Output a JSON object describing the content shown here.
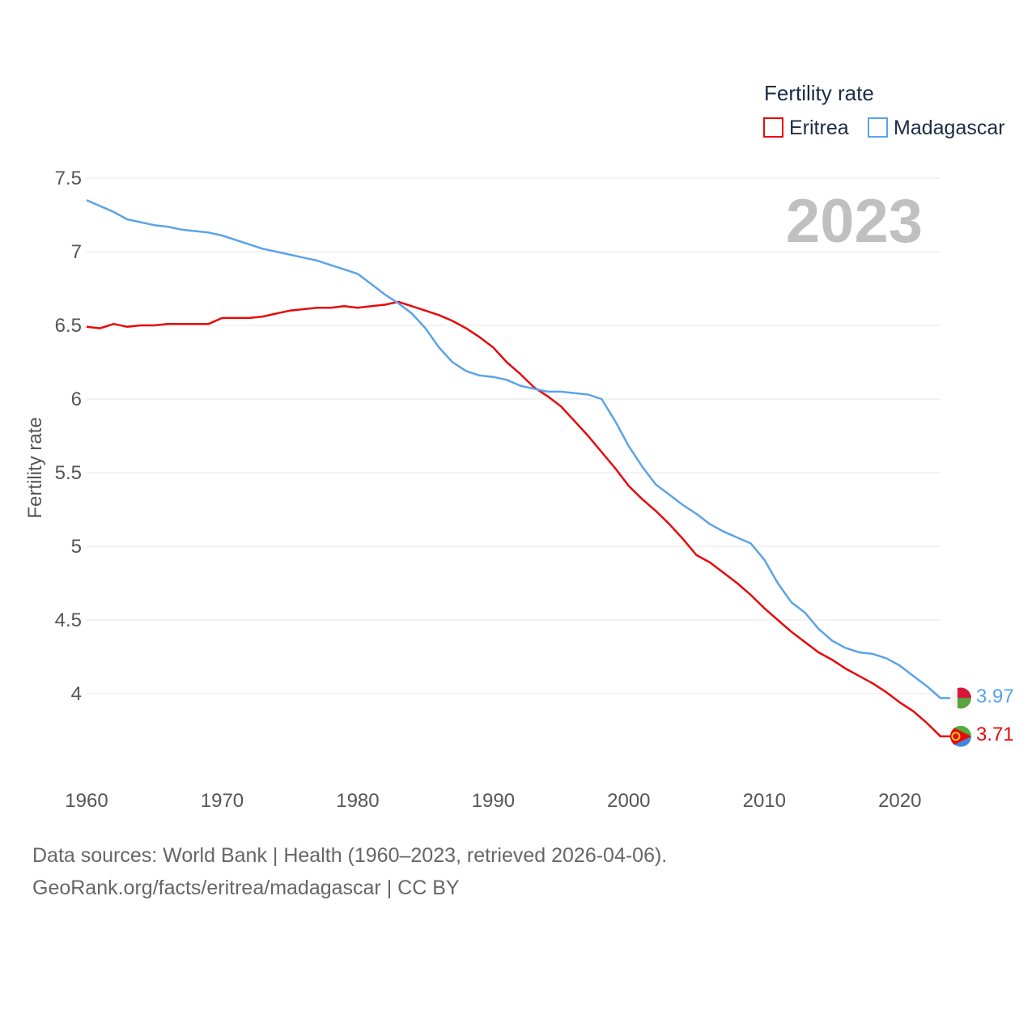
{
  "chart_data": {
    "type": "line",
    "title": "Fertility rate",
    "ylabel": "Fertility rate",
    "xlabel": "",
    "year_label": "2023",
    "xlim": [
      1960,
      2023
    ],
    "ylim": [
      3.5,
      7.6
    ],
    "yticks": [
      4,
      4.5,
      5,
      5.5,
      6,
      6.5,
      7,
      7.5
    ],
    "ytick_labels": [
      "4",
      "4.5",
      "5",
      "5.5",
      "6",
      "6.5",
      "7",
      "7.5"
    ],
    "xticks": [
      1960,
      1970,
      1980,
      1990,
      2000,
      2010,
      2020
    ],
    "xtick_labels": [
      "1960",
      "1970",
      "1980",
      "1990",
      "2000",
      "2010",
      "2020"
    ],
    "legend": {
      "title": "Fertility rate",
      "entries": [
        "Eritrea",
        "Madagascar"
      ]
    },
    "x": [
      1960,
      1961,
      1962,
      1963,
      1964,
      1965,
      1966,
      1967,
      1968,
      1969,
      1970,
      1971,
      1972,
      1973,
      1974,
      1975,
      1976,
      1977,
      1978,
      1979,
      1980,
      1981,
      1982,
      1983,
      1984,
      1985,
      1986,
      1987,
      1988,
      1989,
      1990,
      1991,
      1992,
      1993,
      1994,
      1995,
      1996,
      1997,
      1998,
      1999,
      2000,
      2001,
      2002,
      2003,
      2004,
      2005,
      2006,
      2007,
      2008,
      2009,
      2010,
      2011,
      2012,
      2013,
      2014,
      2015,
      2016,
      2017,
      2018,
      2019,
      2020,
      2021,
      2022,
      2023
    ],
    "series": [
      {
        "name": "Eritrea",
        "color": "#e8090c",
        "end_label": "3.71",
        "values": [
          6.49,
          6.48,
          6.51,
          6.49,
          6.5,
          6.5,
          6.51,
          6.51,
          6.51,
          6.51,
          6.55,
          6.55,
          6.55,
          6.56,
          6.58,
          6.6,
          6.61,
          6.62,
          6.62,
          6.63,
          6.62,
          6.63,
          6.64,
          6.66,
          6.63,
          6.6,
          6.57,
          6.53,
          6.48,
          6.42,
          6.35,
          6.25,
          6.17,
          6.08,
          6.02,
          5.95,
          5.85,
          5.75,
          5.64,
          5.53,
          5.41,
          5.32,
          5.24,
          5.15,
          5.05,
          4.94,
          4.89,
          4.82,
          4.75,
          4.67,
          4.58,
          4.5,
          4.42,
          4.35,
          4.28,
          4.23,
          4.17,
          4.12,
          4.07,
          4.01,
          3.94,
          3.88,
          3.8,
          3.71
        ]
      },
      {
        "name": "Madagascar",
        "color": "#5ba4e6",
        "end_label": "3.97",
        "values": [
          7.35,
          7.31,
          7.27,
          7.22,
          7.2,
          7.18,
          7.17,
          7.15,
          7.14,
          7.13,
          7.11,
          7.08,
          7.05,
          7.02,
          7.0,
          6.98,
          6.96,
          6.94,
          6.91,
          6.88,
          6.85,
          6.78,
          6.71,
          6.65,
          6.58,
          6.48,
          6.35,
          6.25,
          6.19,
          6.16,
          6.15,
          6.13,
          6.09,
          6.07,
          6.05,
          6.05,
          6.04,
          6.03,
          6.0,
          5.85,
          5.68,
          5.54,
          5.42,
          5.35,
          5.28,
          5.22,
          5.15,
          5.1,
          5.06,
          5.02,
          4.91,
          4.75,
          4.62,
          4.55,
          4.44,
          4.36,
          4.31,
          4.28,
          4.27,
          4.24,
          4.19,
          4.12,
          4.05,
          3.97
        ]
      }
    ]
  },
  "source": {
    "line1": "Data sources: World Bank | Health (1960–2023, retrieved 2026-04-06).",
    "line2": "GeoRank.org/facts/eritrea/madagascar | CC BY"
  },
  "flags": {
    "eritrea": {
      "icon": "eritrea-flag-icon",
      "green": "#4caf3c",
      "blue": "#4189dd",
      "red": "#e8090c",
      "emblem": "#ffc726"
    },
    "madagascar": {
      "icon": "madagascar-flag-icon",
      "white": "#f4f4f4",
      "red": "#d6163b",
      "green": "#5aa33d"
    }
  }
}
